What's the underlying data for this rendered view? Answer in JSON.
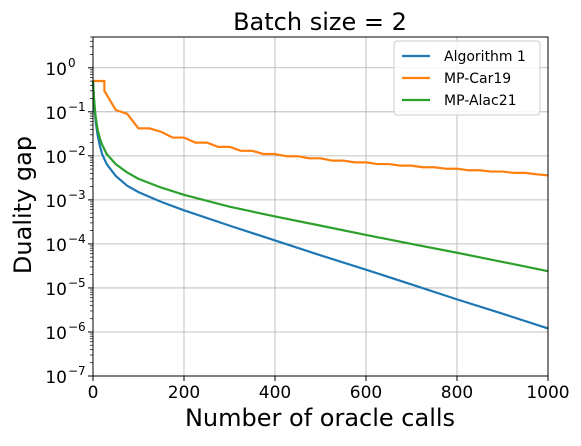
{
  "chart_data": {
    "type": "line",
    "title": "Batch size = 2",
    "xlabel": "Number of oracle calls",
    "ylabel": "Duality gap",
    "xlim": [
      0,
      1000
    ],
    "ylim": [
      1e-07,
      5
    ],
    "yscale": "log",
    "grid": true,
    "legend_position": "top-right",
    "x_ticks": [
      0,
      200,
      400,
      600,
      800,
      1000
    ],
    "x_tick_labels": [
      "0",
      "200",
      "400",
      "600",
      "800",
      "1000"
    ],
    "y_ticks": [
      1e-07,
      1e-06,
      1e-05,
      0.0001,
      0.001,
      0.01,
      0.1,
      1
    ],
    "y_tick_labels": [
      "10",
      "10",
      "10",
      "10",
      "10",
      "10",
      "10",
      "10"
    ],
    "y_tick_exponents": [
      "−7",
      "−6",
      "−5",
      "−4",
      "−3",
      "−2",
      "−1",
      "0"
    ],
    "series": [
      {
        "name": "Algorithm 1",
        "color": "#1f77b4",
        "x": [
          0,
          2,
          4,
          6,
          10,
          15,
          20,
          30,
          50,
          75,
          100,
          150,
          200,
          300,
          400,
          500,
          600,
          700,
          800,
          900,
          1000
        ],
        "y": [
          0.5,
          0.2,
          0.1,
          0.06,
          0.03,
          0.017,
          0.011,
          0.0065,
          0.0035,
          0.0021,
          0.0015,
          0.0009,
          0.00058,
          0.00026,
          0.00012,
          5.5e-05,
          2.6e-05,
          1.2e-05,
          5.5e-06,
          2.6e-06,
          1.2e-06
        ]
      },
      {
        "name": "MP-Car19",
        "color": "#ff7f0e",
        "x": [
          0,
          25,
          25,
          50,
          50,
          75,
          75,
          100,
          100,
          125,
          125,
          150,
          150,
          175,
          175,
          200,
          200,
          225,
          225,
          250,
          250,
          275,
          275,
          300,
          300,
          325,
          325,
          350,
          350,
          375,
          375,
          400,
          400,
          425,
          425,
          450,
          450,
          475,
          475,
          500,
          500,
          525,
          525,
          550,
          550,
          575,
          575,
          600,
          600,
          625,
          625,
          650,
          650,
          675,
          675,
          700,
          700,
          725,
          725,
          750,
          750,
          775,
          775,
          800,
          800,
          825,
          825,
          850,
          850,
          875,
          875,
          900,
          900,
          925,
          925,
          950,
          950,
          975,
          975,
          1000
        ],
        "y": [
          0.5,
          0.5,
          0.3,
          0.11,
          0.11,
          0.09,
          0.09,
          0.042,
          0.042,
          0.042,
          0.042,
          0.035,
          0.035,
          0.026,
          0.026,
          0.026,
          0.026,
          0.02,
          0.02,
          0.02,
          0.02,
          0.016,
          0.016,
          0.016,
          0.016,
          0.013,
          0.013,
          0.013,
          0.013,
          0.011,
          0.011,
          0.011,
          0.011,
          0.0098,
          0.0098,
          0.0098,
          0.0098,
          0.0088,
          0.0088,
          0.0088,
          0.0088,
          0.0078,
          0.0078,
          0.0078,
          0.0078,
          0.0071,
          0.0071,
          0.0071,
          0.0071,
          0.0065,
          0.0065,
          0.0065,
          0.0065,
          0.006,
          0.006,
          0.006,
          0.006,
          0.0055,
          0.0055,
          0.0055,
          0.0055,
          0.0051,
          0.0051,
          0.0051,
          0.0051,
          0.0047,
          0.0047,
          0.0047,
          0.0047,
          0.0044,
          0.0044,
          0.0044,
          0.0044,
          0.0041,
          0.0041,
          0.0041,
          0.0041,
          0.0038,
          0.0038,
          0.0036
        ]
      },
      {
        "name": "MP-Alac21",
        "color": "#2ca02c",
        "x": [
          0,
          2,
          4,
          6,
          10,
          15,
          20,
          30,
          50,
          75,
          100,
          150,
          200,
          300,
          400,
          500,
          600,
          700,
          800,
          900,
          1000
        ],
        "y": [
          0.5,
          0.22,
          0.12,
          0.075,
          0.04,
          0.025,
          0.018,
          0.011,
          0.0065,
          0.0042,
          0.003,
          0.0019,
          0.0013,
          0.0007,
          0.00042,
          0.00026,
          0.00016,
          0.0001,
          6.3e-05,
          3.9e-05,
          2.4e-05
        ]
      }
    ]
  }
}
